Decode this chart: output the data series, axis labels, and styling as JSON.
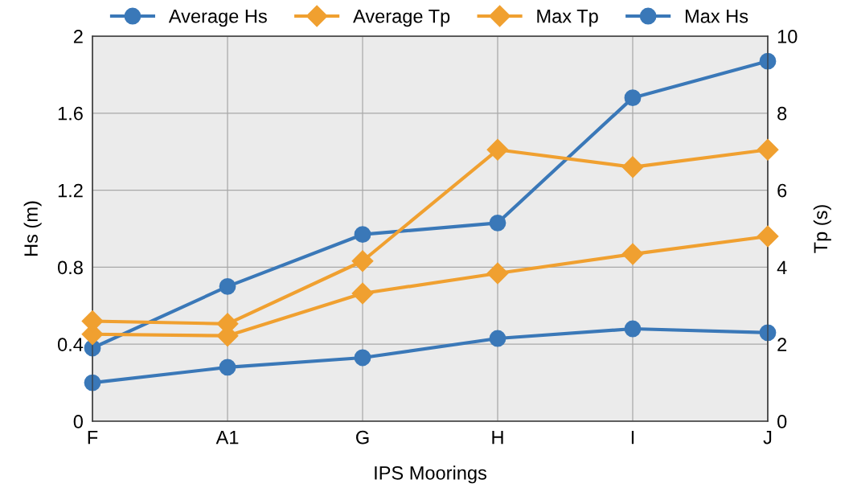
{
  "chart_data": {
    "type": "line",
    "xlabel": "IPS Moorings",
    "ylabel": "Hs (m)",
    "y2label": "Tp (s)",
    "categories": [
      "F",
      "A1",
      "G",
      "H",
      "I",
      "J"
    ],
    "series": [
      {
        "name": "Average Hs",
        "color": "#3a78b8",
        "marker": "circle",
        "values": [
          0.2,
          0.28,
          0.33,
          0.43,
          0.48,
          0.46
        ]
      },
      {
        "name": "Average Tp",
        "color": "#f0a030",
        "marker": "diamond",
        "axis": "y2",
        "values": [
          2.26,
          2.22,
          3.32,
          3.84,
          4.34,
          4.8
        ]
      },
      {
        "name": "Max Tp",
        "color": "#f0a030",
        "marker": "diamond",
        "axis": "y2",
        "values": [
          2.6,
          2.53,
          4.16,
          7.05,
          6.6,
          7.05
        ]
      },
      {
        "name": "Max Hs",
        "color": "#3a78b8",
        "marker": "circle",
        "values": [
          0.38,
          0.7,
          0.97,
          1.03,
          1.68,
          1.87
        ]
      }
    ],
    "ylim": [
      0,
      2
    ],
    "yticks": [
      0,
      0.4,
      0.8,
      1.2,
      1.6,
      2
    ],
    "y2lim": [
      0,
      10
    ],
    "y2ticks": [
      0,
      2,
      4,
      6,
      8,
      10
    ],
    "grid": true,
    "legend": "top",
    "line_style": "solid"
  }
}
